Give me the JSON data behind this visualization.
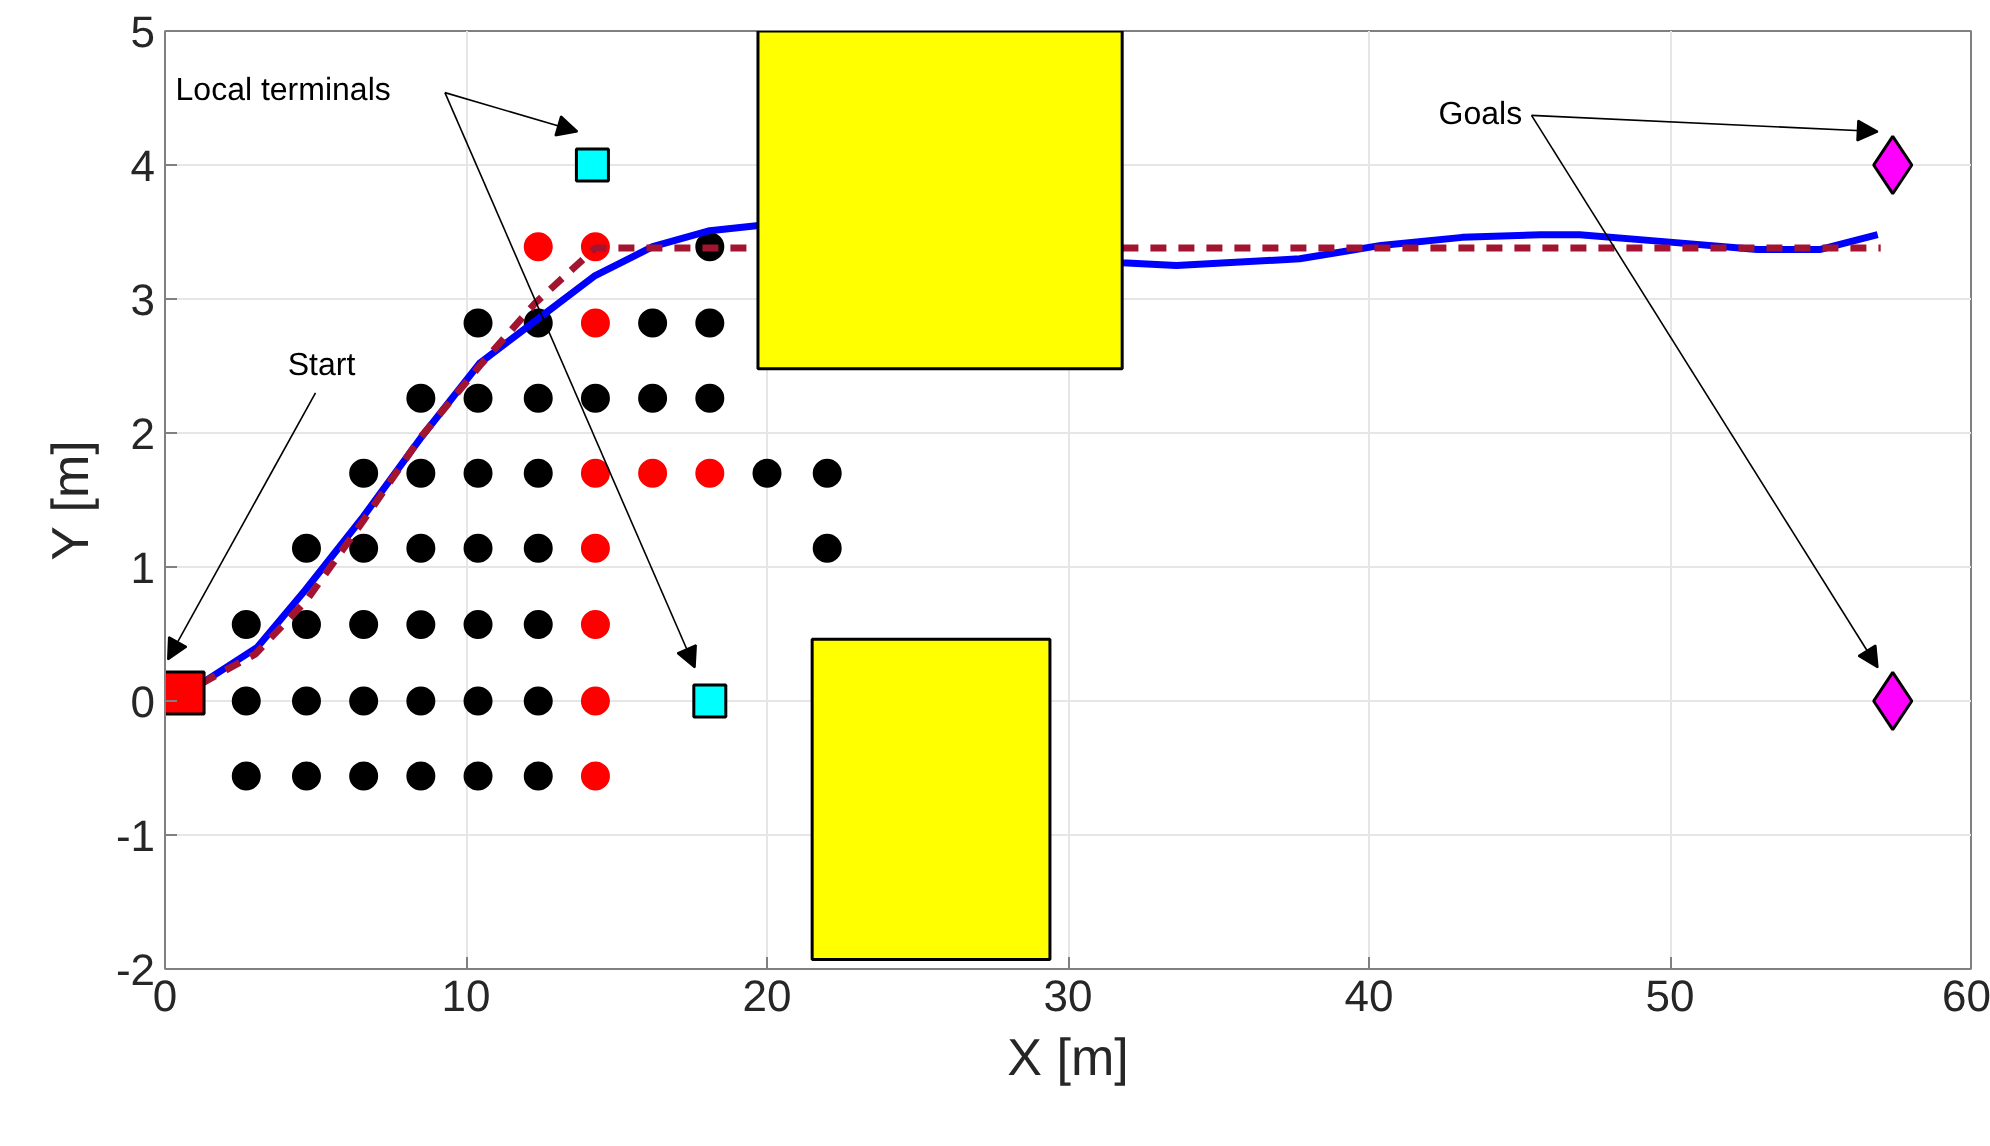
{
  "chart_data": {
    "type": "scatter",
    "xlabel": "X [m]",
    "ylabel": "Y [m]",
    "xlim": [
      0,
      60
    ],
    "xticks": [
      0,
      10,
      20,
      30,
      40,
      50,
      60
    ],
    "ylim": [
      -2,
      5
    ],
    "yticks": [
      -2,
      -1,
      0,
      1,
      2,
      3,
      4,
      5
    ],
    "grid": true,
    "series": [
      {
        "marker": "circle",
        "color": "#000000",
        "x": [
          2.7,
          4.7,
          6.6,
          8.5,
          10.4,
          12.4,
          2.7,
          4.7,
          6.6,
          8.5,
          10.4,
          12.4,
          2.7,
          4.7,
          6.6,
          8.5,
          10.4,
          12.4,
          4.7,
          6.6,
          8.5,
          10.4,
          12.4,
          22.0,
          6.6,
          8.5,
          10.4,
          12.4,
          20.0,
          22.0,
          8.5,
          10.4,
          12.4,
          14.3,
          16.2,
          18.1,
          10.4,
          12.4,
          16.2,
          18.1,
          18.1
        ],
        "values": [
          -0.56,
          -0.56,
          -0.56,
          -0.56,
          -0.56,
          -0.56,
          0,
          0,
          0,
          0,
          0,
          0,
          0.57,
          0.57,
          0.57,
          0.57,
          0.57,
          0.57,
          1.14,
          1.14,
          1.14,
          1.14,
          1.14,
          1.14,
          1.7,
          1.7,
          1.7,
          1.7,
          1.7,
          1.7,
          2.26,
          2.26,
          2.26,
          2.26,
          2.26,
          2.26,
          2.82,
          2.82,
          2.82,
          2.82,
          3.39
        ]
      },
      {
        "marker": "circle",
        "color": "#ff0000",
        "x": [
          14.3,
          14.3,
          14.3,
          14.3,
          14.3,
          16.2,
          18.1,
          14.3,
          12.4,
          14.3
        ],
        "values": [
          -0.56,
          0,
          0.57,
          1.14,
          1.7,
          1.7,
          1.7,
          2.82,
          3.39,
          3.39
        ]
      },
      {
        "type": "line",
        "marker": "none",
        "line_style": "solid",
        "color": "#0000ff",
        "x": [
          1.2,
          3.06,
          4.67,
          6.6,
          8.52,
          10.45,
          12.38,
          14.26,
          16.2,
          18.1,
          19.8,
          31.8,
          33.6,
          37.7,
          40.4,
          43.1,
          45.7,
          47.0,
          49.7,
          52.9,
          55.0,
          56.9
        ],
        "values": [
          0.13,
          0.4,
          0.83,
          1.38,
          1.97,
          2.52,
          2.85,
          3.17,
          3.39,
          3.51,
          3.55,
          3.27,
          3.25,
          3.3,
          3.4,
          3.46,
          3.48,
          3.48,
          3.43,
          3.37,
          3.37,
          3.48
        ]
      },
      {
        "type": "line",
        "marker": "none",
        "line_style": "dashed",
        "color": "#a2142f",
        "x": [
          1.2,
          3.0,
          4.7,
          6.6,
          8.5,
          10.45,
          12.3,
          14.3,
          57.0
        ],
        "values": [
          0.13,
          0.35,
          0.75,
          1.35,
          1.97,
          2.5,
          2.97,
          3.38,
          3.38
        ]
      },
      {
        "type": "bar",
        "color": "#ffff00",
        "x": [
          25.45
        ],
        "base": [
          -1.93
        ],
        "values": [
          2.39
        ]
      },
      {
        "type": "bar",
        "color": "#ffff00",
        "x": [
          25.75
        ],
        "base": [
          2.48
        ],
        "values": [
          2.52
        ]
      },
      {
        "type": "scatter",
        "marker": "square",
        "color": "#ff0000",
        "x": [
          0.6
        ],
        "values": [
          0.06
        ]
      },
      {
        "type": "scatter",
        "marker": "square",
        "color": "#00ffff",
        "x": [
          14.2,
          18.1
        ],
        "values": [
          4.0,
          0.0
        ]
      },
      {
        "type": "scatter",
        "marker": "diamond",
        "color": "#ff00ff",
        "x": [
          57.4,
          57.4
        ],
        "values": [
          4.0,
          0.0
        ]
      }
    ],
    "annotations": [
      "Start",
      "Local terminals",
      "Goals"
    ]
  }
}
